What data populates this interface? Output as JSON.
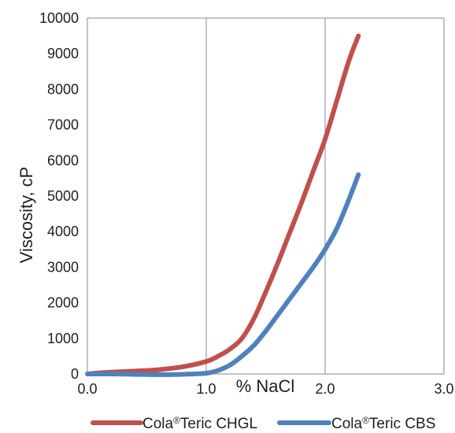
{
  "chart_data": {
    "type": "line",
    "title": "",
    "xlabel": "% NaCl",
    "ylabel": "Viscosity, cP",
    "xlim": [
      0,
      3
    ],
    "ylim": [
      0,
      10000
    ],
    "grid": true,
    "legend_position": "bottom",
    "x_ticks": [
      "0.0",
      "1.0",
      "2.0",
      "3.0"
    ],
    "y_ticks": [
      "0",
      "1000",
      "2000",
      "3000",
      "4000",
      "5000",
      "6000",
      "7000",
      "8000",
      "9000",
      "10000"
    ],
    "series": [
      {
        "name_prefix": "Cola",
        "name_mark": "®",
        "name_suffix": "Teric CHGL",
        "color": "#c0504d",
        "x": [
          0.0,
          0.1,
          0.2,
          0.4,
          0.6,
          0.8,
          1.0,
          1.1,
          1.2,
          1.3,
          1.4,
          1.5,
          1.6,
          1.7,
          1.8,
          1.9,
          2.0,
          2.1,
          2.2,
          2.28
        ],
        "y": [
          0,
          30,
          50,
          80,
          120,
          200,
          350,
          500,
          700,
          1000,
          1550,
          2300,
          3100,
          3950,
          4800,
          5700,
          6600,
          7700,
          8800,
          9500
        ]
      },
      {
        "name_prefix": "Cola",
        "name_mark": "®",
        "name_suffix": "Teric CBS",
        "color": "#4f81bd",
        "x": [
          0.0,
          0.2,
          0.4,
          0.6,
          0.8,
          1.0,
          1.1,
          1.2,
          1.3,
          1.4,
          1.5,
          1.6,
          1.7,
          1.8,
          1.9,
          2.0,
          2.1,
          2.2,
          2.28
        ],
        "y": [
          0,
          0,
          -10,
          -20,
          -10,
          20,
          100,
          250,
          500,
          800,
          1200,
          1650,
          2100,
          2550,
          3000,
          3500,
          4100,
          4900,
          5600
        ]
      }
    ]
  }
}
